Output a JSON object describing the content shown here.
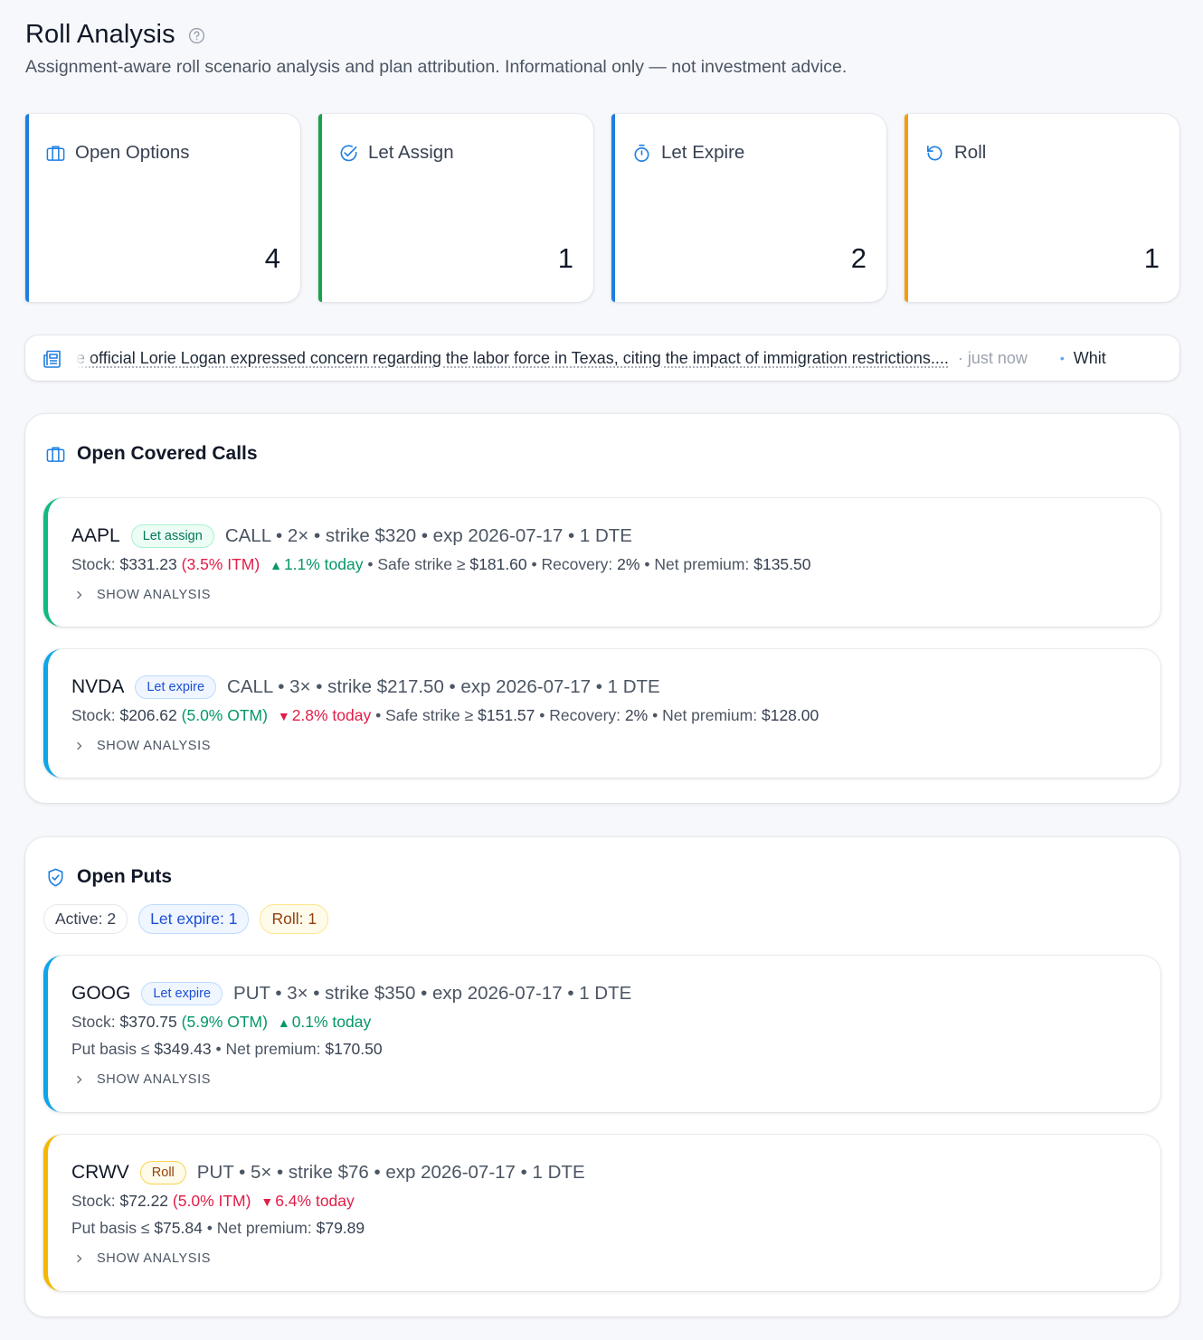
{
  "header": {
    "title": "Roll Analysis",
    "subtitle": "Assignment-aware roll scenario analysis and plan attribution. Informational only — not investment advice."
  },
  "stats": [
    {
      "label": "Open Options",
      "value": "4",
      "icon": "briefcase-icon",
      "color": "#1e7fe0"
    },
    {
      "label": "Let Assign",
      "value": "1",
      "icon": "check-circle-icon",
      "color": "#16a34a"
    },
    {
      "label": "Let Expire",
      "value": "2",
      "icon": "stopwatch-icon",
      "color": "#1e7fe0"
    },
    {
      "label": "Roll",
      "value": "1",
      "icon": "undo-icon",
      "color": "#f59e0b"
    }
  ],
  "ticker": {
    "headline": "serve official Lorie Logan expressed concern regarding the labor force in Texas, citing the impact of immigration restrictions....",
    "time": "· just now",
    "next": "Whit"
  },
  "calls_section": {
    "title": "Open Covered Calls",
    "positions": [
      {
        "symbol": "AAPL",
        "badge": "Let assign",
        "badge_type": "assign",
        "accent": "#10b981",
        "desc": "CALL • 2× • strike $320 • exp 2026-07-17 • 1 DTE",
        "stock_label": "Stock:",
        "stock_price": "$331.23",
        "moneyness": "(3.5% ITM)",
        "moneyness_dir": "red",
        "arrow": "▲",
        "change": "1.1% today",
        "change_dir": "green",
        "rest": [
          {
            "label": "• Safe strike ≥",
            "value": "$181.60"
          },
          {
            "label": "• Recovery:",
            "value": "2%"
          },
          {
            "label": "• Net premium:",
            "value": "$135.50"
          }
        ],
        "show_label": "SHOW ANALYSIS"
      },
      {
        "symbol": "NVDA",
        "badge": "Let expire",
        "badge_type": "expire",
        "accent": "#0ea5e9",
        "desc": "CALL • 3× • strike $217.50 • exp 2026-07-17 • 1 DTE",
        "stock_label": "Stock:",
        "stock_price": "$206.62",
        "moneyness": "(5.0% OTM)",
        "moneyness_dir": "green",
        "arrow": "▼",
        "change": "2.8% today",
        "change_dir": "red",
        "rest": [
          {
            "label": "• Safe strike ≥",
            "value": "$151.57"
          },
          {
            "label": "• Recovery:",
            "value": "2%"
          },
          {
            "label": "• Net premium:",
            "value": "$128.00"
          }
        ],
        "show_label": "SHOW ANALYSIS"
      }
    ]
  },
  "puts_section": {
    "title": "Open Puts",
    "chips": [
      {
        "label": "Active:",
        "value": "2",
        "type": "active"
      },
      {
        "label": "Let expire:",
        "value": "1",
        "type": "exp"
      },
      {
        "label": "Roll:",
        "value": "1",
        "type": "rol"
      }
    ],
    "positions": [
      {
        "symbol": "GOOG",
        "badge": "Let expire",
        "badge_type": "expire",
        "accent": "#0ea5e9",
        "desc": "PUT • 3× • strike $350 • exp 2026-07-17 • 1 DTE",
        "stock_label": "Stock:",
        "stock_price": "$370.75",
        "moneyness": "(5.9% OTM)",
        "moneyness_dir": "green",
        "arrow": "▲",
        "change": "0.1% today",
        "change_dir": "green",
        "basis_label": "Put basis ≤",
        "basis": "$349.43",
        "premium_label": "• Net premium:",
        "premium": "$170.50",
        "show_label": "SHOW ANALYSIS"
      },
      {
        "symbol": "CRWV",
        "badge": "Roll",
        "badge_type": "roll",
        "accent": "#f5b800",
        "desc": "PUT • 5× • strike $76 • exp 2026-07-17 • 1 DTE",
        "stock_label": "Stock:",
        "stock_price": "$72.22",
        "moneyness": "(5.0% ITM)",
        "moneyness_dir": "red",
        "arrow": "▼",
        "change": "6.4% today",
        "change_dir": "red",
        "basis_label": "Put basis ≤",
        "basis": "$75.84",
        "premium_label": "• Net premium:",
        "premium": "$79.89",
        "show_label": "SHOW ANALYSIS"
      }
    ]
  }
}
